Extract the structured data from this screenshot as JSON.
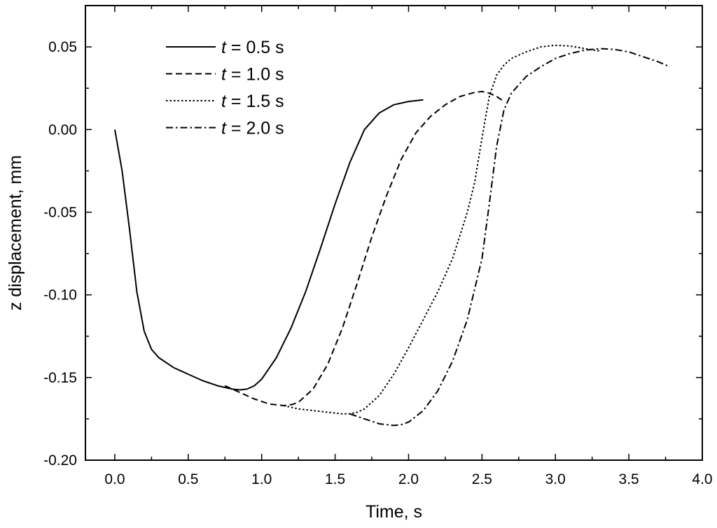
{
  "chart_data": {
    "type": "line",
    "title": "",
    "xlabel": "Time, s",
    "ylabel": "z displacement, mm",
    "xlim": [
      -0.2,
      4.0
    ],
    "ylim": [
      -0.2,
      0.075
    ],
    "grid": false,
    "legend_position": "top-left",
    "x_ticks": [
      0.0,
      0.5,
      1.0,
      1.5,
      2.0,
      2.5,
      3.0,
      3.5,
      4.0
    ],
    "x_tick_labels": [
      "0.0",
      "0.5",
      "1.0",
      "1.5",
      "2.0",
      "2.5",
      "3.0",
      "3.5",
      "4.0"
    ],
    "y_ticks": [
      0.05,
      0.0,
      -0.05,
      -0.1,
      -0.15,
      -0.2
    ],
    "y_tick_labels": [
      "0.05",
      "0.00",
      "-0.05",
      "-0.10",
      "-0.15",
      "-0.20"
    ],
    "series": [
      {
        "name": "t = 0.5 s",
        "legend_var": "t",
        "legend_rest": " = 0.5 s",
        "style": "solid",
        "x": [
          0.0,
          0.05,
          0.1,
          0.15,
          0.2,
          0.25,
          0.3,
          0.4,
          0.5,
          0.6,
          0.7,
          0.8,
          0.85,
          0.9,
          0.95,
          1.0,
          1.1,
          1.2,
          1.3,
          1.4,
          1.5,
          1.6,
          1.7,
          1.8,
          1.9,
          2.0,
          2.1
        ],
        "y": [
          0.0,
          -0.025,
          -0.06,
          -0.098,
          -0.122,
          -0.133,
          -0.138,
          -0.144,
          -0.148,
          -0.152,
          -0.155,
          -0.157,
          -0.1575,
          -0.157,
          -0.155,
          -0.151,
          -0.138,
          -0.12,
          -0.098,
          -0.072,
          -0.045,
          -0.02,
          0.0,
          0.01,
          0.015,
          0.017,
          0.018
        ]
      },
      {
        "name": "t = 1.0 s",
        "legend_var": "t",
        "legend_rest": " = 1.0 s",
        "style": "dashed",
        "x": [
          0.75,
          0.85,
          0.95,
          1.05,
          1.15,
          1.2,
          1.25,
          1.35,
          1.45,
          1.55,
          1.65,
          1.75,
          1.85,
          1.95,
          2.05,
          2.15,
          2.25,
          2.35,
          2.45,
          2.5,
          2.55,
          2.6,
          2.65
        ],
        "y": [
          -0.155,
          -0.159,
          -0.163,
          -0.166,
          -0.167,
          -0.1665,
          -0.165,
          -0.157,
          -0.142,
          -0.12,
          -0.093,
          -0.065,
          -0.04,
          -0.018,
          -0.002,
          0.008,
          0.015,
          0.02,
          0.0225,
          0.023,
          0.022,
          0.02,
          0.017
        ]
      },
      {
        "name": "t = 1.5 s",
        "legend_var": "t",
        "legend_rest": " = 1.5 s",
        "style": "dotted",
        "x": [
          1.15,
          1.25,
          1.35,
          1.45,
          1.55,
          1.6,
          1.65,
          1.7,
          1.8,
          1.9,
          2.0,
          2.1,
          2.2,
          2.3,
          2.4,
          2.45,
          2.5,
          2.55,
          2.6,
          2.65,
          2.7,
          2.8,
          2.9,
          3.0,
          3.1,
          3.2,
          3.3
        ],
        "y": [
          -0.167,
          -0.169,
          -0.17,
          -0.171,
          -0.172,
          -0.172,
          -0.171,
          -0.169,
          -0.161,
          -0.148,
          -0.132,
          -0.115,
          -0.098,
          -0.078,
          -0.05,
          -0.032,
          -0.005,
          0.02,
          0.033,
          0.039,
          0.043,
          0.047,
          0.05,
          0.051,
          0.0505,
          0.049,
          0.0475
        ]
      },
      {
        "name": "t = 2.0 s",
        "legend_var": "t",
        "legend_rest": " = 2.0 s",
        "style": "dashdot",
        "x": [
          1.6,
          1.7,
          1.8,
          1.9,
          1.95,
          2.0,
          2.1,
          2.2,
          2.3,
          2.4,
          2.5,
          2.55,
          2.6,
          2.65,
          2.7,
          2.8,
          2.9,
          3.0,
          3.1,
          3.2,
          3.3,
          3.4,
          3.5,
          3.6,
          3.7,
          3.78
        ],
        "y": [
          -0.172,
          -0.175,
          -0.178,
          -0.179,
          -0.1785,
          -0.177,
          -0.17,
          -0.158,
          -0.14,
          -0.115,
          -0.078,
          -0.045,
          -0.01,
          0.012,
          0.022,
          0.032,
          0.038,
          0.043,
          0.046,
          0.048,
          0.049,
          0.0485,
          0.047,
          0.044,
          0.041,
          0.038
        ]
      }
    ]
  }
}
